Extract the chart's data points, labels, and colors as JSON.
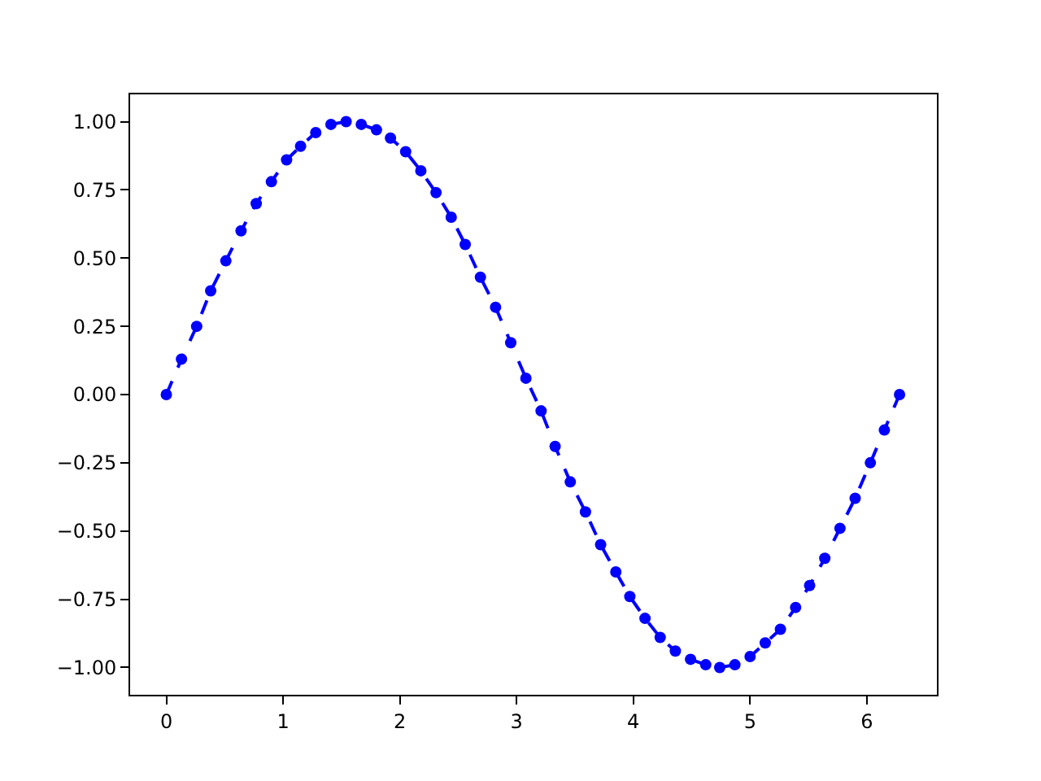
{
  "chart_data": {
    "type": "line",
    "x": [
      0,
      0.13,
      0.26,
      0.38,
      0.51,
      0.64,
      0.77,
      0.9,
      1.03,
      1.15,
      1.28,
      1.41,
      1.54,
      1.67,
      1.8,
      1.92,
      2.05,
      2.18,
      2.31,
      2.44,
      2.56,
      2.69,
      2.82,
      2.95,
      3.08,
      3.21,
      3.33,
      3.46,
      3.59,
      3.72,
      3.85,
      3.97,
      4.1,
      4.23,
      4.36,
      4.49,
      4.62,
      4.74,
      4.87,
      5.0,
      5.13,
      5.26,
      5.39,
      5.51,
      5.64,
      5.77,
      5.9,
      6.03,
      6.15,
      6.28
    ],
    "series": [
      {
        "color": "#0000ff",
        "values": [
          0,
          0.13,
          0.25,
          0.38,
          0.49,
          0.6,
          0.7,
          0.78,
          0.86,
          0.91,
          0.96,
          0.99,
          1.0,
          0.99,
          0.97,
          0.94,
          0.89,
          0.82,
          0.74,
          0.65,
          0.55,
          0.43,
          0.32,
          0.19,
          0.06,
          -0.06,
          -0.19,
          -0.32,
          -0.43,
          -0.55,
          -0.65,
          -0.74,
          -0.82,
          -0.89,
          -0.94,
          -0.97,
          -0.99,
          -1.0,
          -0.99,
          -0.96,
          -0.91,
          -0.86,
          -0.78,
          -0.7,
          -0.6,
          -0.49,
          -0.38,
          -0.25,
          -0.13,
          0
        ]
      }
    ],
    "xlim": [
      -0.31,
      6.6
    ],
    "ylim": [
      -1.1,
      1.1
    ],
    "xticks": [
      0,
      1,
      2,
      3,
      4,
      5,
      6
    ],
    "yticks": [
      {
        "value": -1,
        "label": "−1.00"
      },
      {
        "value": -0.75,
        "label": "−0.75"
      },
      {
        "value": -0.5,
        "label": "−0.50"
      },
      {
        "value": -0.25,
        "label": "−0.25"
      },
      {
        "value": 0,
        "label": "0.00"
      },
      {
        "value": 0.25,
        "label": "0.25"
      },
      {
        "value": 0.5,
        "label": "0.50"
      },
      {
        "value": 0.75,
        "label": "0.75"
      },
      {
        "value": 1,
        "label": "1.00"
      }
    ],
    "marker": "circle",
    "line_style": "dashed"
  }
}
